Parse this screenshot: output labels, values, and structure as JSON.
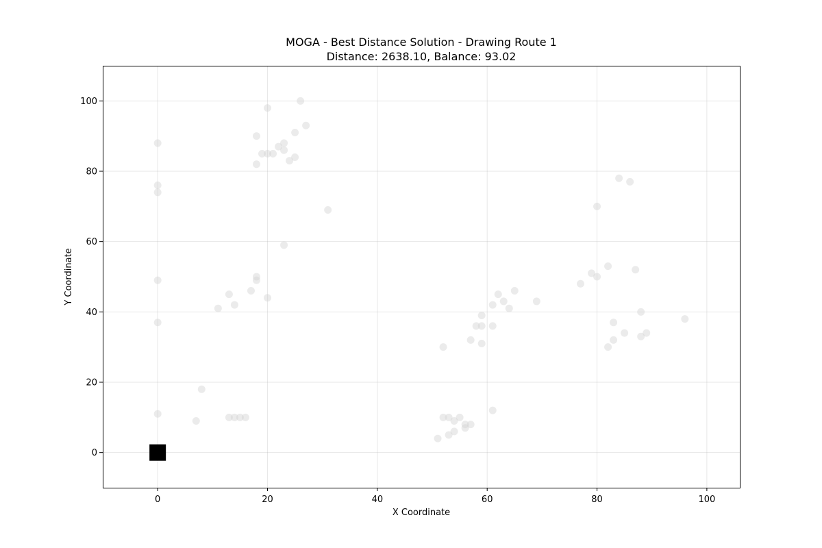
{
  "chart_data": {
    "type": "scatter",
    "title": "MOGA - Best Distance Solution - Drawing Route 1",
    "subtitle": "Distance: 2638.10, Balance: 93.02",
    "xlabel": "X Coordinate",
    "ylabel": "Y Coordinate",
    "xlim": [
      -10,
      106
    ],
    "ylim": [
      -10,
      110
    ],
    "xticks": [
      0,
      20,
      40,
      60,
      80,
      100
    ],
    "yticks": [
      0,
      20,
      40,
      60,
      80,
      100
    ],
    "grid": true,
    "colors": {
      "customer": "#d3d3d3",
      "depot": "#000000"
    },
    "depot": {
      "x": 0,
      "y": 0
    },
    "customers": [
      {
        "x": 26,
        "y": 100
      },
      {
        "x": 20,
        "y": 98
      },
      {
        "x": 27,
        "y": 93
      },
      {
        "x": 25,
        "y": 91
      },
      {
        "x": 18,
        "y": 90
      },
      {
        "x": 23,
        "y": 88
      },
      {
        "x": 22,
        "y": 87
      },
      {
        "x": 23,
        "y": 86
      },
      {
        "x": 19,
        "y": 85
      },
      {
        "x": 20,
        "y": 85
      },
      {
        "x": 21,
        "y": 85
      },
      {
        "x": 25,
        "y": 84
      },
      {
        "x": 24,
        "y": 83
      },
      {
        "x": 18,
        "y": 82
      },
      {
        "x": 0,
        "y": 88
      },
      {
        "x": 0,
        "y": 76
      },
      {
        "x": 0,
        "y": 74
      },
      {
        "x": 31,
        "y": 69
      },
      {
        "x": 23,
        "y": 59
      },
      {
        "x": 0,
        "y": 49
      },
      {
        "x": 18,
        "y": 50
      },
      {
        "x": 18,
        "y": 49
      },
      {
        "x": 17,
        "y": 46
      },
      {
        "x": 13,
        "y": 45
      },
      {
        "x": 20,
        "y": 44
      },
      {
        "x": 14,
        "y": 42
      },
      {
        "x": 11,
        "y": 41
      },
      {
        "x": 0,
        "y": 37
      },
      {
        "x": 8,
        "y": 18
      },
      {
        "x": 0,
        "y": 11
      },
      {
        "x": 13,
        "y": 10
      },
      {
        "x": 14,
        "y": 10
      },
      {
        "x": 15,
        "y": 10
      },
      {
        "x": 16,
        "y": 10
      },
      {
        "x": 7,
        "y": 9
      },
      {
        "x": 84,
        "y": 78
      },
      {
        "x": 86,
        "y": 77
      },
      {
        "x": 80,
        "y": 70
      },
      {
        "x": 82,
        "y": 53
      },
      {
        "x": 87,
        "y": 52
      },
      {
        "x": 79,
        "y": 51
      },
      {
        "x": 80,
        "y": 50
      },
      {
        "x": 77,
        "y": 48
      },
      {
        "x": 65,
        "y": 46
      },
      {
        "x": 62,
        "y": 45
      },
      {
        "x": 63,
        "y": 43
      },
      {
        "x": 69,
        "y": 43
      },
      {
        "x": 61,
        "y": 42
      },
      {
        "x": 64,
        "y": 41
      },
      {
        "x": 88,
        "y": 40
      },
      {
        "x": 59,
        "y": 39
      },
      {
        "x": 96,
        "y": 38
      },
      {
        "x": 83,
        "y": 37
      },
      {
        "x": 58,
        "y": 36
      },
      {
        "x": 59,
        "y": 36
      },
      {
        "x": 61,
        "y": 36
      },
      {
        "x": 85,
        "y": 34
      },
      {
        "x": 89,
        "y": 34
      },
      {
        "x": 88,
        "y": 33
      },
      {
        "x": 57,
        "y": 32
      },
      {
        "x": 83,
        "y": 32
      },
      {
        "x": 59,
        "y": 31
      },
      {
        "x": 52,
        "y": 30
      },
      {
        "x": 82,
        "y": 30
      },
      {
        "x": 61,
        "y": 12
      },
      {
        "x": 52,
        "y": 10
      },
      {
        "x": 53,
        "y": 10
      },
      {
        "x": 55,
        "y": 10
      },
      {
        "x": 54,
        "y": 9
      },
      {
        "x": 56,
        "y": 8
      },
      {
        "x": 57,
        "y": 8
      },
      {
        "x": 56,
        "y": 7
      },
      {
        "x": 54,
        "y": 6
      },
      {
        "x": 53,
        "y": 5
      },
      {
        "x": 51,
        "y": 4
      }
    ]
  }
}
